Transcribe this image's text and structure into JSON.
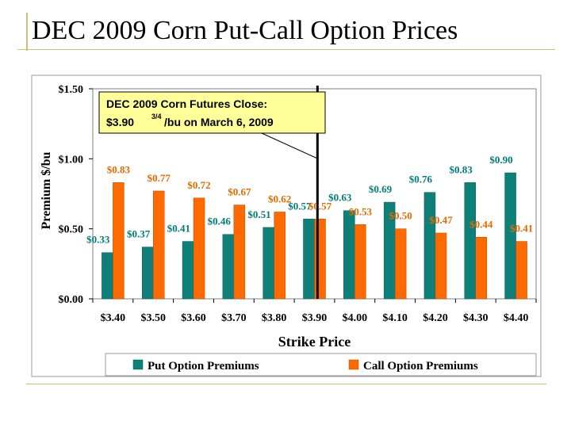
{
  "slide": {
    "title": "DEC 2009 Corn Put-Call Option Prices"
  },
  "colors": {
    "put": "#0f7f7a",
    "call": "#ff6a00",
    "put_label": "#007c78",
    "call_label": "#e06c00",
    "callout_bg": "#ffff99",
    "plot_bg": "#ffffff"
  },
  "callout": {
    "line1": "DEC 2009 Corn Futures Close:",
    "line2_price": "$3.90",
    "line2_frac": "3/4",
    "line2_rest": "/bu on March 6, 2009"
  },
  "chart_data": {
    "type": "bar",
    "title": "",
    "xlabel": "Strike Price",
    "ylabel": "Premium $/bu",
    "ylim": [
      0,
      1.5
    ],
    "yticks": [
      0,
      0.5,
      1.0,
      1.5
    ],
    "ytick_labels": [
      "$0.00",
      "$0.50",
      "$1.00",
      "$1.50"
    ],
    "categories": [
      "$3.40",
      "$3.50",
      "$3.60",
      "$3.70",
      "$3.80",
      "$3.90",
      "$4.00",
      "$4.10",
      "$4.20",
      "$4.30",
      "$4.40"
    ],
    "series": [
      {
        "name": "Put Option Premiums",
        "values": [
          0.33,
          0.37,
          0.41,
          0.46,
          0.51,
          0.57,
          0.63,
          0.69,
          0.76,
          0.83,
          0.9
        ],
        "labels": [
          "$0.33",
          "$0.37",
          "$0.41",
          "$0.46",
          "$0.51",
          "$0.57",
          "$0.63",
          "$0.69",
          "$0.76",
          "$0.83",
          "$0.90"
        ]
      },
      {
        "name": "Call Option Premiums",
        "values": [
          0.83,
          0.77,
          0.72,
          0.67,
          0.62,
          0.57,
          0.53,
          0.5,
          0.47,
          0.44,
          0.41
        ],
        "labels": [
          "$0.83",
          "$0.77",
          "$0.72",
          "$0.67",
          "$0.62",
          "$0.57",
          "$0.53",
          "$0.50",
          "$0.47",
          "$0.44",
          "$0.41"
        ]
      }
    ],
    "reference_line_value": 3.9075,
    "grid": false,
    "legend": "bottom"
  }
}
